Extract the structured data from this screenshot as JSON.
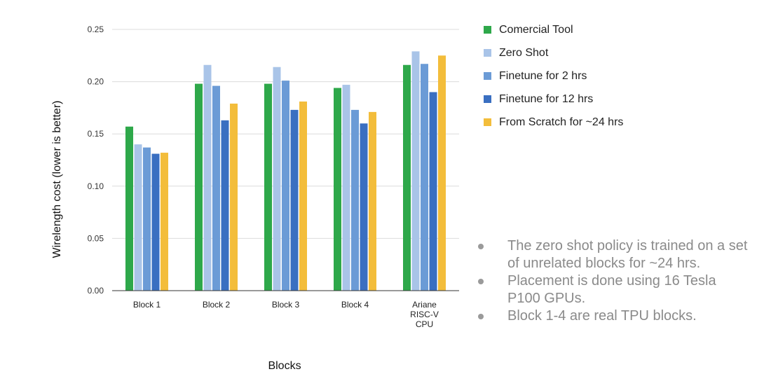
{
  "chart_data": {
    "type": "bar",
    "title": "",
    "xlabel": "Blocks",
    "ylabel": "Wirelength cost (lower is better)",
    "ylim": [
      0,
      0.25
    ],
    "yticks": [
      "0.00",
      "0.05",
      "0.10",
      "0.15",
      "0.20",
      "0.25"
    ],
    "grid": true,
    "legend_position": "right",
    "categories": [
      "Block 1",
      "Block 2",
      "Block 3",
      "Block 4",
      "Ariane RISC-V CPU"
    ],
    "category_lines": [
      [
        "Block 1"
      ],
      [
        "Block 2"
      ],
      [
        "Block 3"
      ],
      [
        "Block 4"
      ],
      [
        "Ariane",
        "RISC-V",
        "CPU"
      ]
    ],
    "series": [
      {
        "name": "Comercial Tool",
        "color": "#2ea84a",
        "values": [
          0.157,
          0.198,
          0.198,
          0.194,
          0.216
        ]
      },
      {
        "name": "Zero Shot",
        "color": "#a9c4e8",
        "values": [
          0.14,
          0.216,
          0.214,
          0.197,
          0.229
        ]
      },
      {
        "name": "Finetune for 2 hrs",
        "color": "#6b9bd6",
        "values": [
          0.137,
          0.196,
          0.201,
          0.173,
          0.217
        ]
      },
      {
        "name": "Finetune for 12 hrs",
        "color": "#3a6fc1",
        "values": [
          0.131,
          0.163,
          0.173,
          0.16,
          0.19
        ]
      },
      {
        "name": "From Scratch for ~24 hrs",
        "color": "#f3bd3b",
        "values": [
          0.132,
          0.179,
          0.181,
          0.171,
          0.225
        ]
      }
    ]
  },
  "legend": [
    {
      "label": "Comercial Tool",
      "color": "#2ea84a"
    },
    {
      "label": "Zero Shot",
      "color": "#a9c4e8"
    },
    {
      "label": "Finetune for 2 hrs",
      "color": "#6b9bd6"
    },
    {
      "label": "Finetune for 12 hrs",
      "color": "#3a6fc1"
    },
    {
      "label": "From Scratch for ~24 hrs",
      "color": "#f3bd3b"
    }
  ],
  "notes": [
    "The zero shot policy is trained on a set of unrelated blocks for ~24 hrs.",
    "Placement is done using 16 Tesla P100 GPUs.",
    "Block 1-4 are real TPU blocks."
  ]
}
